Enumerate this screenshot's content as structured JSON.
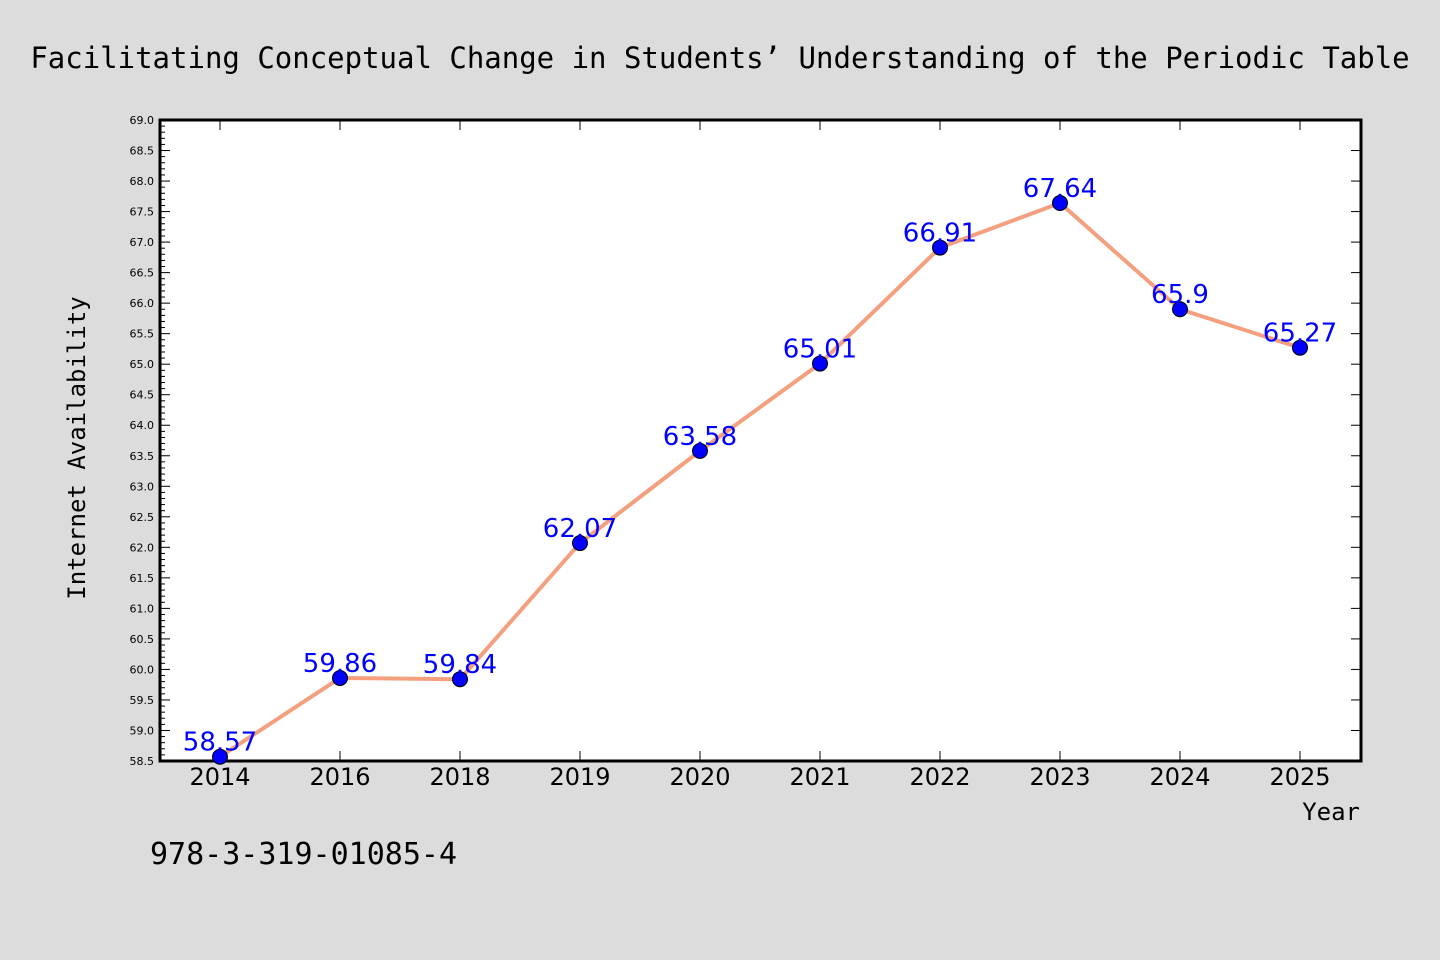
{
  "title": "Facilitating Conceptual Change in Students’ Understanding of the Periodic Table",
  "footer_code": "978-3-319-01085-4",
  "colors": {
    "background": "#dcdcdc",
    "plot_background": "#ffffff",
    "line": "#f4a07f",
    "marker": "#0000ff",
    "data_label": "#0000ff"
  },
  "chart_data": {
    "type": "line",
    "xlabel": "Year",
    "ylabel": "Internet Availability",
    "categories": [
      "2014",
      "2016",
      "2018",
      "2019",
      "2020",
      "2021",
      "2022",
      "2023",
      "2024",
      "2025"
    ],
    "values": [
      58.57,
      59.86,
      59.84,
      62.07,
      63.58,
      65.01,
      66.91,
      67.64,
      65.9,
      65.27
    ],
    "data_labels": [
      "58.57",
      "59.86",
      "59.84",
      "62.07",
      "63.58",
      "65.01",
      "66.91",
      "67.64",
      "65.9",
      "65.27"
    ],
    "ylim": [
      58.5,
      69.0
    ],
    "y_ticks": [
      "58.5",
      "59.0",
      "59.5",
      "60.0",
      "60.5",
      "61.0",
      "61.5",
      "62.0",
      "62.5",
      "63.0",
      "63.5",
      "64.0",
      "64.5",
      "65.0",
      "65.5",
      "66.0",
      "66.5",
      "67.0",
      "67.5",
      "68.0",
      "68.5",
      "69.0"
    ],
    "grid": false,
    "legend": "none"
  }
}
